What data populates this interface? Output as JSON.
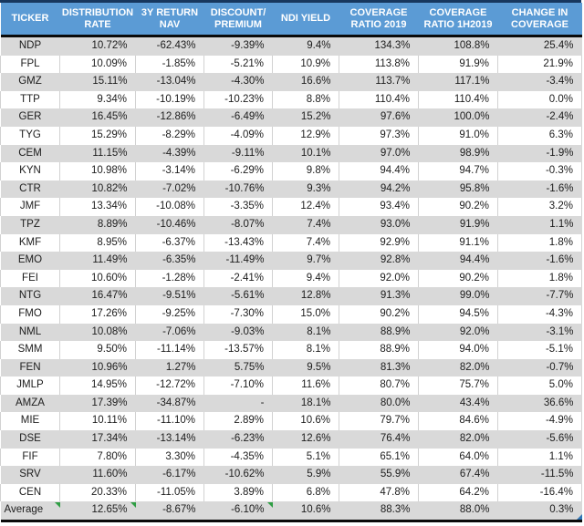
{
  "colors": {
    "header_bg": "#5B9BD5",
    "header_text": "#FFFFFF",
    "band_row_bg": "#D9D9D9",
    "plain_row_bg": "#FFFFFF",
    "top_border": "#17375E",
    "thick_divider": "#0A0A0A",
    "cell_text": "#1C1C1C",
    "flag_green": "#2F9E44",
    "selection_handle_blue": "#2E75B6"
  },
  "chart_data": {
    "type": "table",
    "title": "",
    "columns": [
      "TICKER",
      "DISTRIBUTION RATE",
      "3Y RETURN NAV",
      "DISCOUNT/PREMIUM",
      "NDI YIELD",
      "COVERAGE RATIO 2019",
      "COVERAGE RATIO 1H2019",
      "CHANGE IN COVERAGE"
    ],
    "header_lines": [
      [
        "TICKER"
      ],
      [
        "DISTRIBUTION",
        "RATE"
      ],
      [
        "3Y RETURN",
        "NAV"
      ],
      [
        "DISCOUNT/",
        "PREMIUM"
      ],
      [
        "NDI YIELD"
      ],
      [
        "COVERAGE",
        "RATIO 2019"
      ],
      [
        "COVERAGE",
        "RATIO 1H2019"
      ],
      [
        "CHANGE IN",
        "COVERAGE"
      ]
    ],
    "rows": [
      [
        "NDP",
        "10.72%",
        "-62.43%",
        "-9.39%",
        "9.4%",
        "134.3%",
        "108.8%",
        "25.4%"
      ],
      [
        "FPL",
        "10.09%",
        "-1.85%",
        "-5.21%",
        "10.9%",
        "113.8%",
        "91.9%",
        "21.9%"
      ],
      [
        "GMZ",
        "15.11%",
        "-13.04%",
        "-4.30%",
        "16.6%",
        "113.7%",
        "117.1%",
        "-3.4%"
      ],
      [
        "TTP",
        "9.34%",
        "-10.19%",
        "-10.23%",
        "8.8%",
        "110.4%",
        "110.4%",
        "0.0%"
      ],
      [
        "GER",
        "16.45%",
        "-12.86%",
        "-6.49%",
        "15.2%",
        "97.6%",
        "100.0%",
        "-2.4%"
      ],
      [
        "TYG",
        "15.29%",
        "-8.29%",
        "-4.09%",
        "12.9%",
        "97.3%",
        "91.0%",
        "6.3%"
      ],
      [
        "CEM",
        "11.15%",
        "-4.39%",
        "-9.11%",
        "10.1%",
        "97.0%",
        "98.9%",
        "-1.9%"
      ],
      [
        "KYN",
        "10.98%",
        "-3.14%",
        "-6.29%",
        "9.8%",
        "94.4%",
        "94.7%",
        "-0.3%"
      ],
      [
        "CTR",
        "10.82%",
        "-7.02%",
        "-10.76%",
        "9.3%",
        "94.2%",
        "95.8%",
        "-1.6%"
      ],
      [
        "JMF",
        "13.34%",
        "-10.08%",
        "-3.35%",
        "12.4%",
        "93.4%",
        "90.2%",
        "3.2%"
      ],
      [
        "TPZ",
        "8.89%",
        "-10.46%",
        "-8.07%",
        "7.4%",
        "93.0%",
        "91.9%",
        "1.1%"
      ],
      [
        "KMF",
        "8.95%",
        "-6.37%",
        "-13.43%",
        "7.4%",
        "92.9%",
        "91.1%",
        "1.8%"
      ],
      [
        "EMO",
        "11.49%",
        "-6.35%",
        "-11.49%",
        "9.7%",
        "92.8%",
        "94.4%",
        "-1.6%"
      ],
      [
        "FEI",
        "10.60%",
        "-1.28%",
        "-2.41%",
        "9.4%",
        "92.0%",
        "90.2%",
        "1.8%"
      ],
      [
        "NTG",
        "16.47%",
        "-9.51%",
        "-5.61%",
        "12.8%",
        "91.3%",
        "99.0%",
        "-7.7%"
      ],
      [
        "FMO",
        "17.26%",
        "-9.25%",
        "-7.30%",
        "15.0%",
        "90.2%",
        "94.5%",
        "-4.3%"
      ],
      [
        "NML",
        "10.08%",
        "-7.06%",
        "-9.03%",
        "8.1%",
        "88.9%",
        "92.0%",
        "-3.1%"
      ],
      [
        "SMM",
        "9.50%",
        "-11.14%",
        "-13.57%",
        "8.1%",
        "88.9%",
        "94.0%",
        "-5.1%"
      ],
      [
        "FEN",
        "10.96%",
        "1.27%",
        "5.75%",
        "9.5%",
        "81.3%",
        "82.0%",
        "-0.7%"
      ],
      [
        "JMLP",
        "14.95%",
        "-12.72%",
        "-7.10%",
        "11.6%",
        "80.7%",
        "75.7%",
        "5.0%"
      ],
      [
        "AMZA",
        "17.39%",
        "-34.87%",
        "-",
        "18.1%",
        "80.0%",
        "43.4%",
        "36.6%"
      ],
      [
        "MIE",
        "10.11%",
        "-11.10%",
        "2.89%",
        "10.6%",
        "79.7%",
        "84.6%",
        "-4.9%"
      ],
      [
        "DSE",
        "17.34%",
        "-13.14%",
        "-6.23%",
        "12.6%",
        "76.4%",
        "82.0%",
        "-5.6%"
      ],
      [
        "FIF",
        "7.80%",
        "3.30%",
        "-4.35%",
        "5.1%",
        "65.1%",
        "64.0%",
        "1.1%"
      ],
      [
        "SRV",
        "11.60%",
        "-6.17%",
        "-10.62%",
        "5.9%",
        "55.9%",
        "67.4%",
        "-11.5%"
      ],
      [
        "CEN",
        "20.33%",
        "-11.05%",
        "3.89%",
        "6.8%",
        "47.8%",
        "64.2%",
        "-16.4%"
      ]
    ],
    "average_row": [
      "Average",
      "12.65%",
      "-8.67%",
      "-6.10%",
      "10.6%",
      "88.3%",
      "88.0%",
      "0.3%"
    ],
    "annotations": {
      "green_flag_marked_average_cells": [
        0,
        1,
        3
      ],
      "selection_handle_cell": 7
    },
    "layout": {
      "banding": "alternating rows starting gray",
      "first_column_align": "center",
      "numeric_align": "right"
    }
  }
}
